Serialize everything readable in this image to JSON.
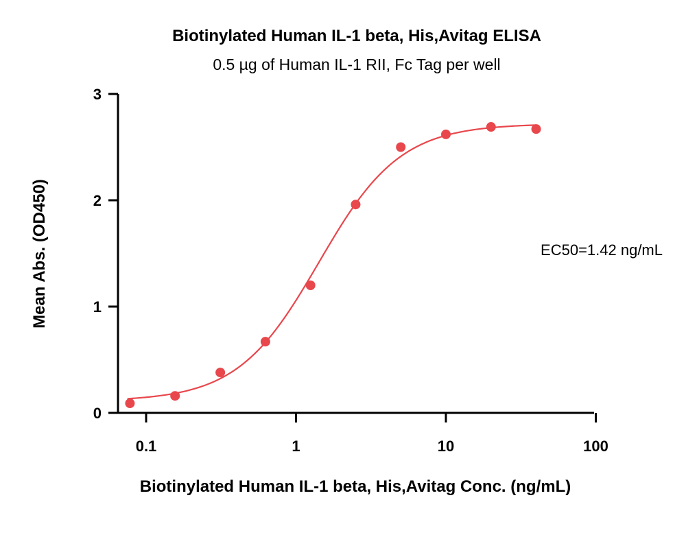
{
  "chart_data": {
    "type": "scatter",
    "title": "Biotinylated Human IL-1 beta, His,Avitag ELISA",
    "subtitle": "0.5 µg of Human IL-1 RII, Fc Tag per well",
    "xlabel": "Biotinylated Human IL-1 beta, His,Avitag Conc. (ng/mL)",
    "ylabel": "Mean Abs. (OD450)",
    "xscale": "log",
    "xlim": [
      0.06,
      100
    ],
    "ylim": [
      0,
      3
    ],
    "xticks": [
      0.1,
      1,
      10,
      100
    ],
    "xtick_labels": [
      "0.1",
      "1",
      "10",
      "100"
    ],
    "yticks": [
      0,
      1,
      2,
      3
    ],
    "ytick_labels": [
      "0",
      "1",
      "2",
      "3"
    ],
    "grid": false,
    "color": "#e8474c",
    "points": {
      "x": [
        0.078,
        0.156,
        0.3125,
        0.625,
        1.25,
        2.5,
        5,
        10,
        20,
        40
      ],
      "y": [
        0.09,
        0.16,
        0.38,
        0.67,
        1.2,
        1.96,
        2.5,
        2.62,
        2.69,
        2.67
      ]
    },
    "fit": {
      "model": "4PL",
      "bottom": 0.11,
      "top": 2.72,
      "ec50": 1.42,
      "hill": 1.6,
      "x_range": [
        0.075,
        40
      ]
    },
    "annotation": "EC50=1.42 ng/mL"
  }
}
